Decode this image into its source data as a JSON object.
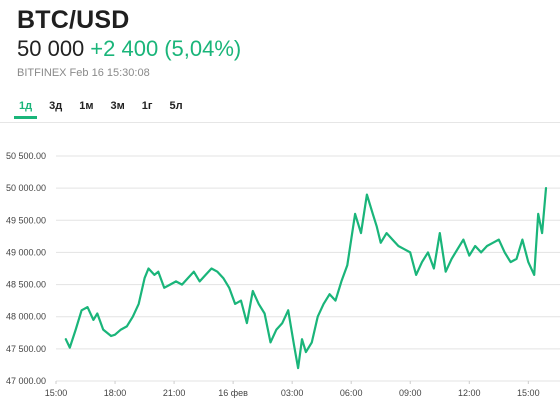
{
  "header": {
    "title": "BTC/USD",
    "price": "50 000",
    "change": "+2 400",
    "change_pct": "(5,04%)",
    "meta": "BITFINEX Feb 16 15:30:08"
  },
  "tabs": [
    {
      "label": "1д",
      "active": true
    },
    {
      "label": "3д",
      "active": false
    },
    {
      "label": "1м",
      "active": false
    },
    {
      "label": "3м",
      "active": false
    },
    {
      "label": "1г",
      "active": false
    },
    {
      "label": "5л",
      "active": false
    }
  ],
  "colors": {
    "accent": "#1ab57a",
    "line": "#1ab57a",
    "grid": "#e3e3e3",
    "text": "#222222",
    "muted": "#8a8a8a"
  },
  "chart_data": {
    "type": "line",
    "title": "",
    "xlabel": "",
    "ylabel": "",
    "ylim": [
      47000,
      50500
    ],
    "y_ticks": [
      47000,
      47500,
      48000,
      48500,
      49000,
      49500,
      50000,
      50500
    ],
    "y_tick_labels": [
      "47 000.00",
      "47 500.00",
      "48 000.00",
      "48 500.00",
      "49 000.00",
      "49 500.00",
      "50 000.00",
      "50 500.00"
    ],
    "x_ticks": [
      {
        "t": 0,
        "label": "15:00"
      },
      {
        "t": 3,
        "label": "18:00"
      },
      {
        "t": 6,
        "label": "21:00"
      },
      {
        "t": 9,
        "label": "16 фев"
      },
      {
        "t": 12,
        "label": "03:00"
      },
      {
        "t": 15,
        "label": "06:00"
      },
      {
        "t": 18,
        "label": "09:00"
      },
      {
        "t": 21,
        "label": "12:00"
      },
      {
        "t": 24,
        "label": "15:00"
      }
    ],
    "grid": true,
    "series": [
      {
        "x": [
          0.5,
          0.7,
          1.0,
          1.3,
          1.6,
          1.9,
          2.1,
          2.4,
          2.8,
          3.0,
          3.3,
          3.6,
          3.9,
          4.2,
          4.5,
          4.7,
          5.0,
          5.2,
          5.5,
          5.8,
          6.1,
          6.4,
          6.7,
          7.0,
          7.3,
          7.6,
          7.9,
          8.2,
          8.5,
          8.8,
          9.1,
          9.4,
          9.7,
          10.0,
          10.3,
          10.6,
          10.9,
          11.2,
          11.5,
          11.8,
          12.1,
          12.3,
          12.5,
          12.7,
          13.0,
          13.3,
          13.6,
          13.9,
          14.2,
          14.5,
          14.8,
          15.0,
          15.2,
          15.5,
          15.8,
          16.1,
          16.3,
          16.5,
          16.8,
          17.1,
          17.4,
          17.7,
          18.0,
          18.3,
          18.6,
          18.9,
          19.2,
          19.5,
          19.8,
          20.1,
          20.4,
          20.7,
          21.0,
          21.3,
          21.6,
          21.9,
          22.2,
          22.5,
          22.8,
          23.1,
          23.4,
          23.7,
          24.0,
          24.3,
          24.5,
          24.7,
          24.9
        ],
        "y": [
          47650,
          47520,
          47800,
          48100,
          48150,
          47950,
          48050,
          47800,
          47700,
          47720,
          47800,
          47850,
          48000,
          48200,
          48600,
          48750,
          48650,
          48700,
          48450,
          48500,
          48550,
          48500,
          48600,
          48700,
          48550,
          48650,
          48750,
          48700,
          48600,
          48450,
          48200,
          48250,
          47900,
          48400,
          48200,
          48050,
          47600,
          47800,
          47900,
          48100,
          47550,
          47200,
          47650,
          47450,
          47600,
          48000,
          48200,
          48350,
          48250,
          48550,
          48800,
          49200,
          49600,
          49300,
          49900,
          49600,
          49400,
          49150,
          49300,
          49200,
          49100,
          49050,
          49000,
          48650,
          48850,
          49000,
          48750,
          49300,
          48700,
          48900,
          49050,
          49200,
          48950,
          49100,
          49000,
          49100,
          49150,
          49200,
          49000,
          48850,
          48900,
          49200,
          48850,
          48650,
          49600,
          49300,
          50000
        ]
      }
    ]
  }
}
